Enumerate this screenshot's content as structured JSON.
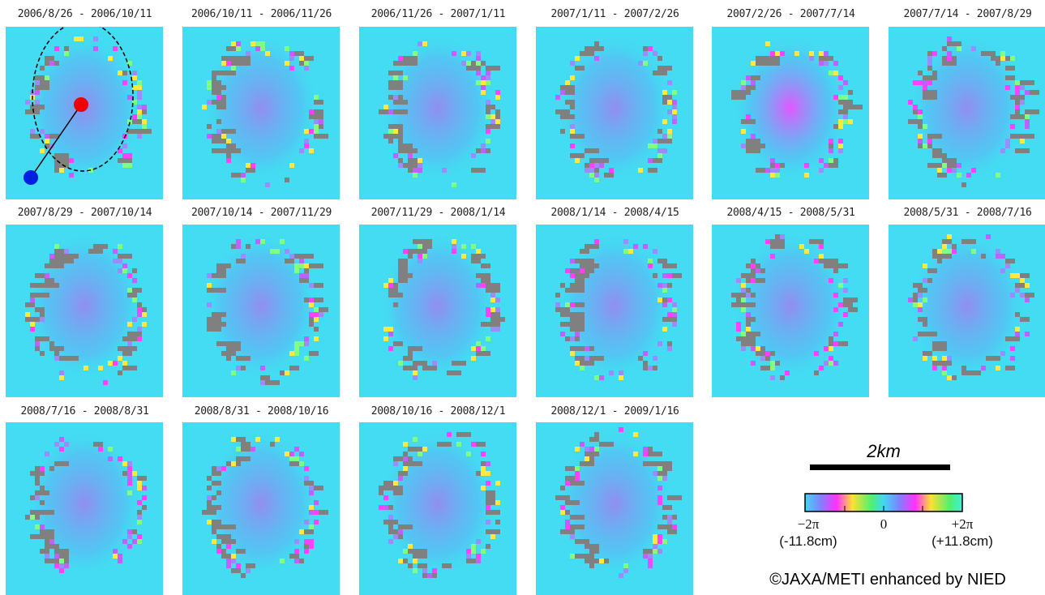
{
  "panels": [
    {
      "title": "2006/8/26 - 2006/10/11"
    },
    {
      "title": "2006/10/11 - 2006/11/26"
    },
    {
      "title": "2006/11/26 - 2007/1/11"
    },
    {
      "title": "2007/1/11 - 2007/2/26"
    },
    {
      "title": "2007/2/26 - 2007/7/14"
    },
    {
      "title": "2007/7/14 - 2007/8/29"
    },
    {
      "title": "2007/8/29 - 2007/10/14"
    },
    {
      "title": "2007/10/14 - 2007/11/29"
    },
    {
      "title": "2007/11/29 - 2008/1/14"
    },
    {
      "title": "2008/1/14 - 2008/4/15"
    },
    {
      "title": "2008/4/15 - 2008/5/31"
    },
    {
      "title": "2008/5/31 - 2008/7/16"
    },
    {
      "title": "2008/7/16 - 2008/8/31"
    },
    {
      "title": "2008/8/31 - 2008/10/16"
    },
    {
      "title": "2008/10/16 - 2008/12/1"
    },
    {
      "title": "2008/12/1 - 2009/1/16"
    }
  ],
  "scale_bar": {
    "label": "2km"
  },
  "colorbar": {
    "min_label": "−2π",
    "min_sub": "(-11.8cm)",
    "mid_label": "0",
    "max_label": "+2π",
    "max_sub": "(+11.8cm)"
  },
  "credit": "©JAXA/METI enhanced by NIED"
}
